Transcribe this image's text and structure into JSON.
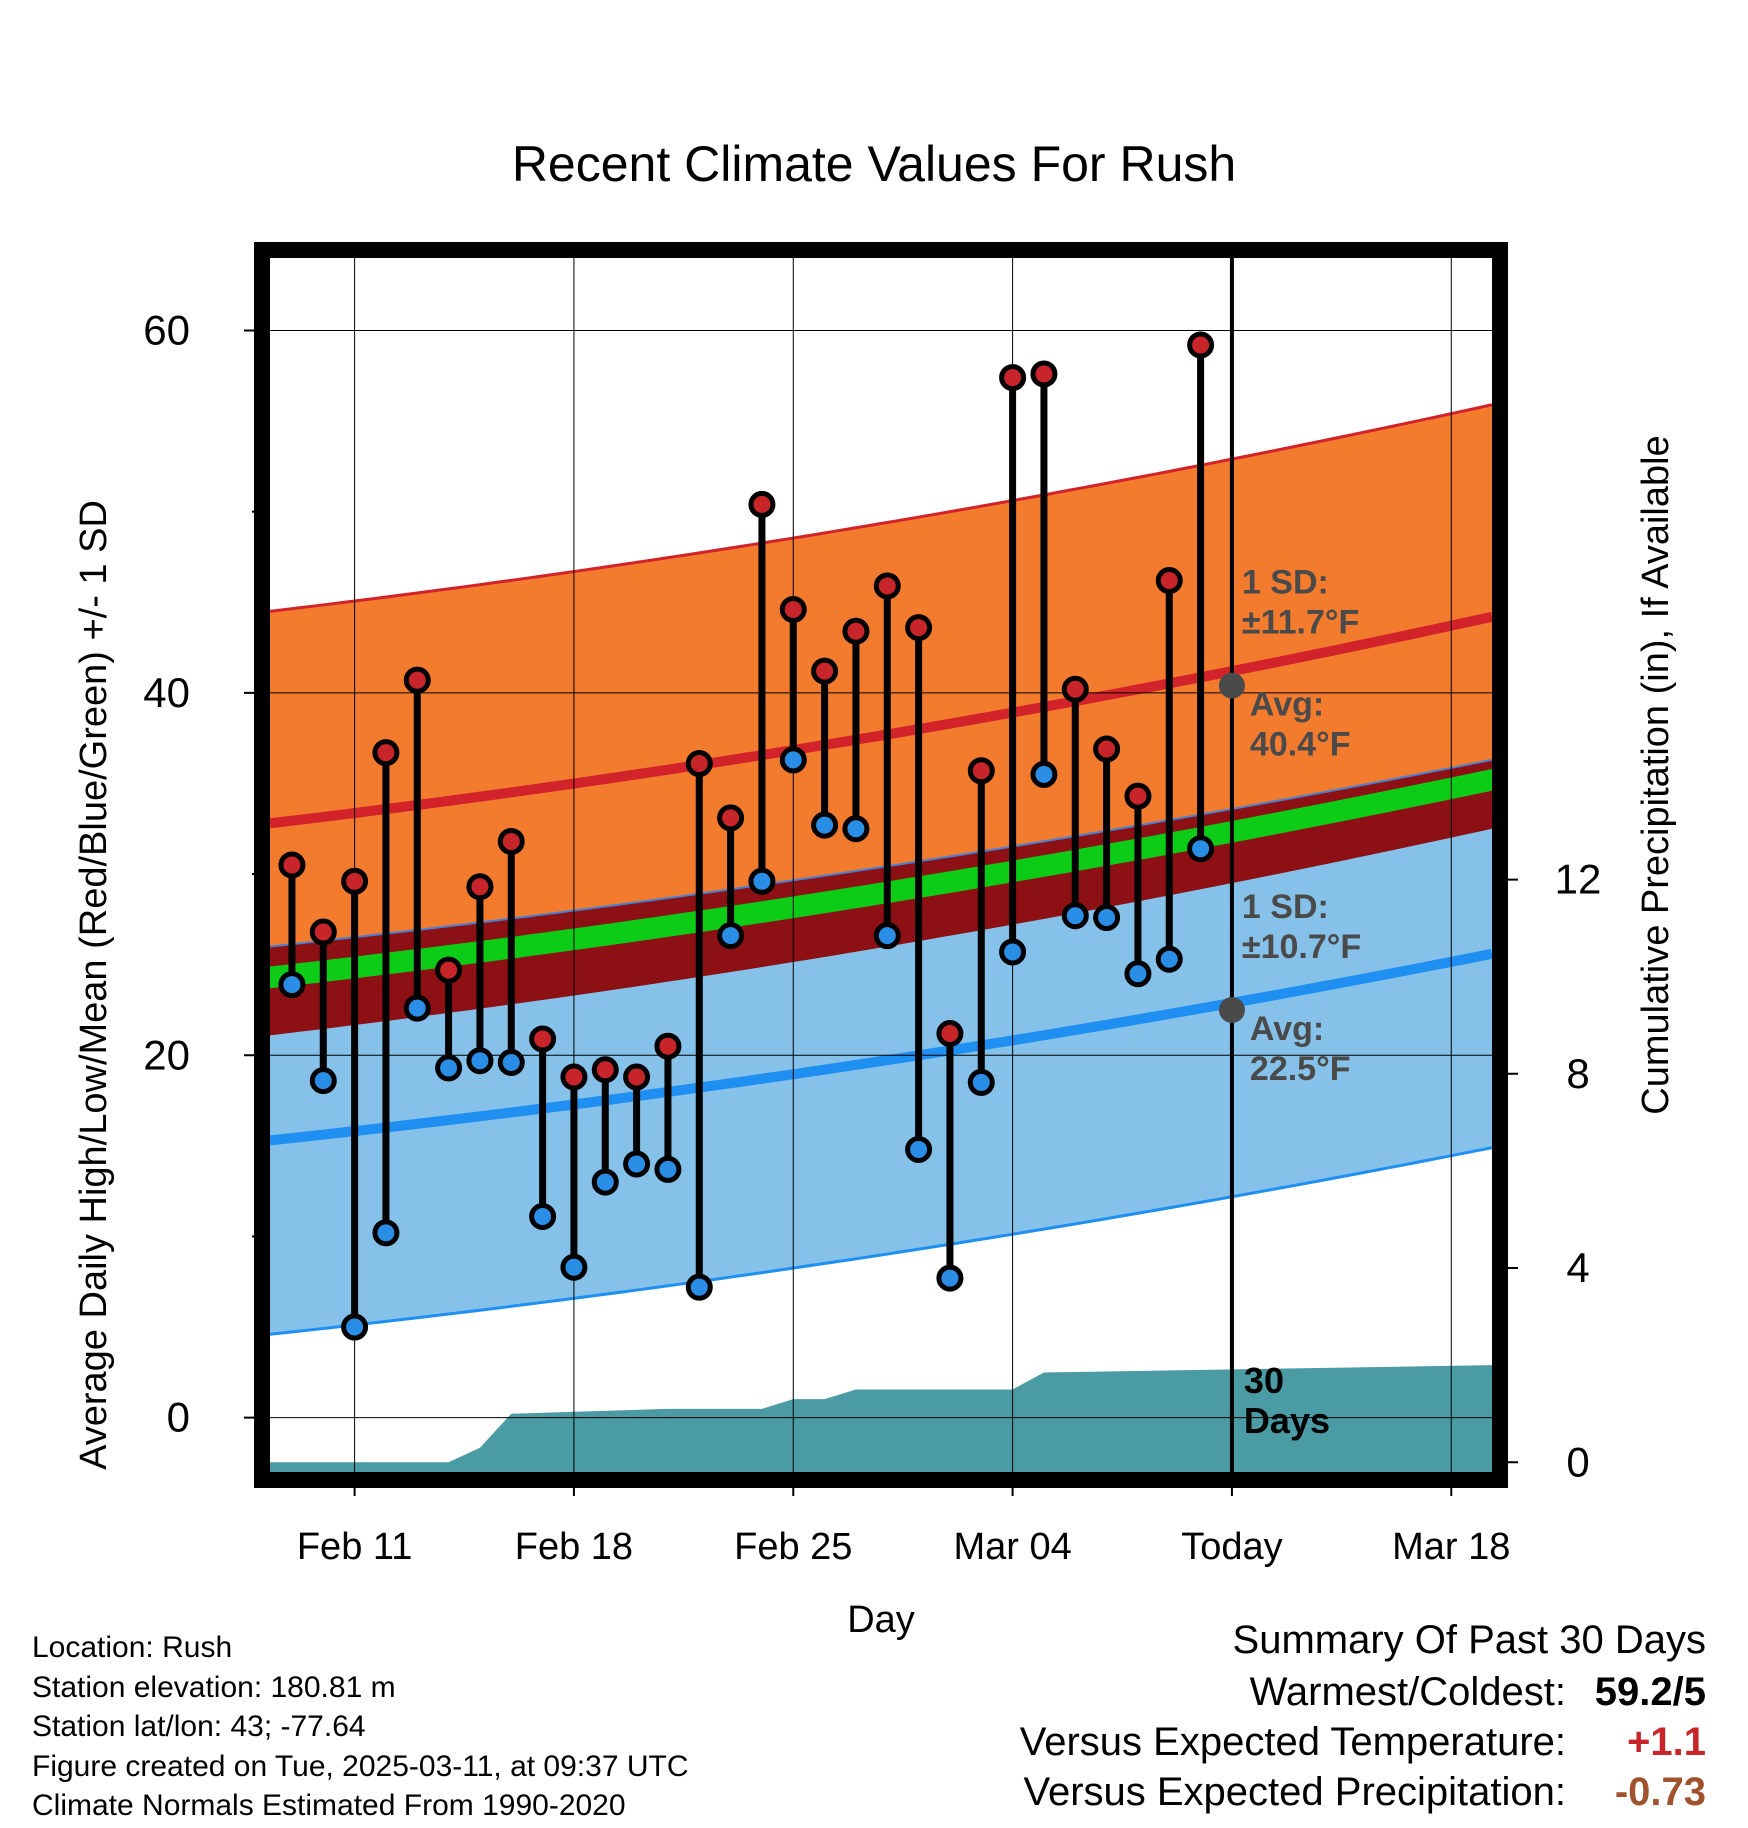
{
  "title": "Recent Climate Values For Rush",
  "chart_data": {
    "type": "line",
    "title": "Recent Climate Values For Rush",
    "xlabel": "Day",
    "ylabel": "Average Daily High/Low/Mean (Red/Blue/Green) +/- 1 SD",
    "y2label": "Cumulative Precipitation (in), If Available",
    "x_tick_labels": [
      "Feb 11",
      "Feb 18",
      "Feb 25",
      "Mar 04",
      "Today",
      "Mar 18"
    ],
    "x_tick_days": [
      2,
      9,
      16,
      23,
      30,
      37
    ],
    "x_range_days": [
      -0.7,
      38.3
    ],
    "ylim": [
      -3,
      64
    ],
    "y_ticks": [
      0,
      20,
      40,
      60
    ],
    "y_minor_ticks": [
      10,
      30,
      50
    ],
    "y2lim": [
      -0.2,
      24.8
    ],
    "y2_ticks": [
      0,
      4,
      8,
      12
    ],
    "days": [
      0,
      1,
      2,
      3,
      4,
      5,
      6,
      7,
      8,
      9,
      10,
      11,
      12,
      13,
      14,
      15,
      16,
      17,
      18,
      19,
      20,
      21,
      22,
      23,
      24,
      25,
      26,
      27,
      28,
      29
    ],
    "series": [
      {
        "name": "Daily High",
        "color": "#c8252a",
        "values": [
          30.5,
          26.8,
          29.6,
          36.7,
          40.7,
          24.7,
          29.3,
          31.8,
          20.9,
          18.8,
          19.2,
          18.8,
          20.5,
          36.1,
          33.1,
          50.4,
          44.6,
          41.2,
          43.4,
          45.9,
          43.6,
          21.2,
          35.7,
          57.4,
          57.6,
          40.2,
          36.9,
          34.3,
          46.2,
          59.2
        ]
      },
      {
        "name": "Daily Low",
        "color": "#2a8ee6",
        "values": [
          23.9,
          18.6,
          5.0,
          10.2,
          22.6,
          19.3,
          19.7,
          19.6,
          11.1,
          8.3,
          13.0,
          14.0,
          13.7,
          7.2,
          26.6,
          29.6,
          36.3,
          32.7,
          32.5,
          26.6,
          14.8,
          7.7,
          18.5,
          25.7,
          35.5,
          27.7,
          27.6,
          24.5,
          25.3,
          31.4
        ]
      }
    ],
    "normals": {
      "day_start": -0.7,
      "day_end": 38.3,
      "high_mean": [
        32.8,
        44.2
      ],
      "high_sd": 11.7,
      "low_mean": [
        15.3,
        25.6
      ],
      "low_sd": 10.7,
      "mean_mean": [
        24.3,
        35.2
      ]
    },
    "precipitation_cumulative": {
      "days": [
        -0.7,
        5,
        6,
        7,
        12,
        15,
        16,
        17,
        18,
        19,
        23,
        24,
        38.3
      ],
      "values": [
        0,
        0,
        0.3,
        1.0,
        1.1,
        1.1,
        1.3,
        1.3,
        1.5,
        1.5,
        1.5,
        1.85,
        2.0
      ]
    },
    "annotations": {
      "high_sd_label": [
        "1 SD:",
        "±11.7°F"
      ],
      "high_avg_label": [
        "Avg:",
        "40.4°F"
      ],
      "high_avg_value": 40.4,
      "low_sd_label": [
        "1 SD:",
        "±10.7°F"
      ],
      "low_avg_label": [
        "Avg:",
        "22.5°F"
      ],
      "low_avg_value": 22.5,
      "period_label": [
        "30",
        "Days"
      ],
      "today_day": 30
    }
  },
  "footer": {
    "location": "Location: Rush",
    "elevation": "Station elevation: 180.81 m",
    "latlon": "Station lat/lon: 43; -77.64",
    "created": "Figure created on Tue, 2025-03-11, at 09:37 UTC",
    "normals": "Climate Normals Estimated From 1990-2020"
  },
  "summary": {
    "heading": "Summary Of Past 30 Days",
    "warm_cold_label": "Warmest/Coldest:",
    "warm_cold_value": "59.2/5",
    "temp_label": "Versus Expected Temperature:",
    "temp_value": "+1.1",
    "temp_color": "#c8252a",
    "precip_label": "Versus Expected Precipitation:",
    "precip_value": "-0.73",
    "precip_color": "#a0522d"
  },
  "colors": {
    "high_band": "#f27b2e",
    "overlap_band": "#8c1014",
    "low_band": "#85c1e8",
    "mean_band": "#0dcc18",
    "high_line": "#d2232a",
    "low_line": "#1f8ff2",
    "precip": "#4a9ba3",
    "annotation": "#4a4a4a"
  }
}
